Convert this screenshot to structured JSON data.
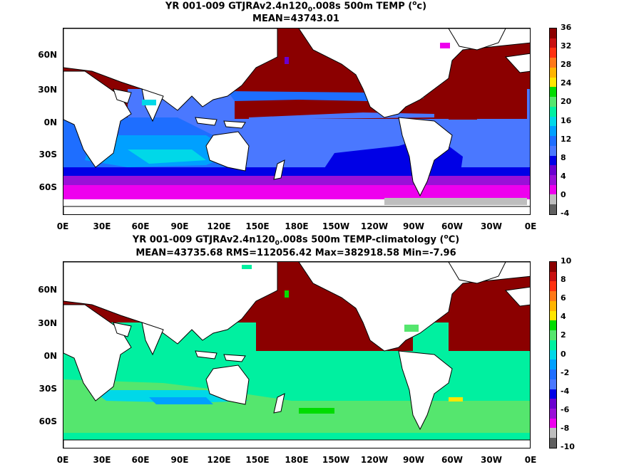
{
  "panels": [
    {
      "title_prefix": "YR 001-009 GTJRAv2.4n120",
      "title_sub": "0",
      "title_suffix": ".008s 500m TEMP (",
      "title_sup": "o",
      "title_end": "c)",
      "stats": "MEAN=43743.01",
      "colorbar_labels": [
        "36",
        "32",
        "28",
        "24",
        "20",
        "16",
        "12",
        "8",
        "4",
        "0",
        "-4"
      ],
      "colorbar_colors": [
        "#8b0000",
        "#c81010",
        "#ff3010",
        "#ff7818",
        "#ffb400",
        "#ffe600",
        "#00dc00",
        "#55e66e",
        "#00f0a0",
        "#00d8e8",
        "#00a0ff",
        "#1e6eff",
        "#4a78ff",
        "#0000e6",
        "#6a00d0",
        "#9a10d8",
        "#ee00ee",
        "#bebebe",
        "#606060"
      ]
    },
    {
      "title_prefix": "YR 001-009 GTJRAv2.4n120",
      "title_sub": "0",
      "title_suffix": ".008s 500m TEMP-climatology (",
      "title_sup": "o",
      "title_end": "C)",
      "stats": "MEAN=43735.68   RMS=112056.42   Max=382918.58   Min=-7.96",
      "colorbar_labels": [
        "10",
        "8",
        "6",
        "4",
        "2",
        "0",
        "-2",
        "-4",
        "-6",
        "-8",
        "-10"
      ],
      "colorbar_colors": [
        "#8b0000",
        "#c81010",
        "#ff3010",
        "#ff7818",
        "#ffb400",
        "#ffe600",
        "#00dc00",
        "#55e66e",
        "#00f0a0",
        "#00d8e8",
        "#00a0ff",
        "#1e6eff",
        "#4a78ff",
        "#0000e6",
        "#6a00d0",
        "#9a10d8",
        "#ee00ee",
        "#bebebe",
        "#606060"
      ]
    }
  ],
  "lat_labels": [
    "60N",
    "30N",
    "0N",
    "30S",
    "60S"
  ],
  "lon_labels": [
    "0E",
    "30E",
    "60E",
    "90E",
    "120E",
    "150E",
    "180E",
    "150W",
    "120W",
    "90W",
    "60W",
    "30W",
    "0E"
  ],
  "colors": {
    "land": "#ffffff",
    "coast": "#000000",
    "dark_red": "#8b0000"
  }
}
